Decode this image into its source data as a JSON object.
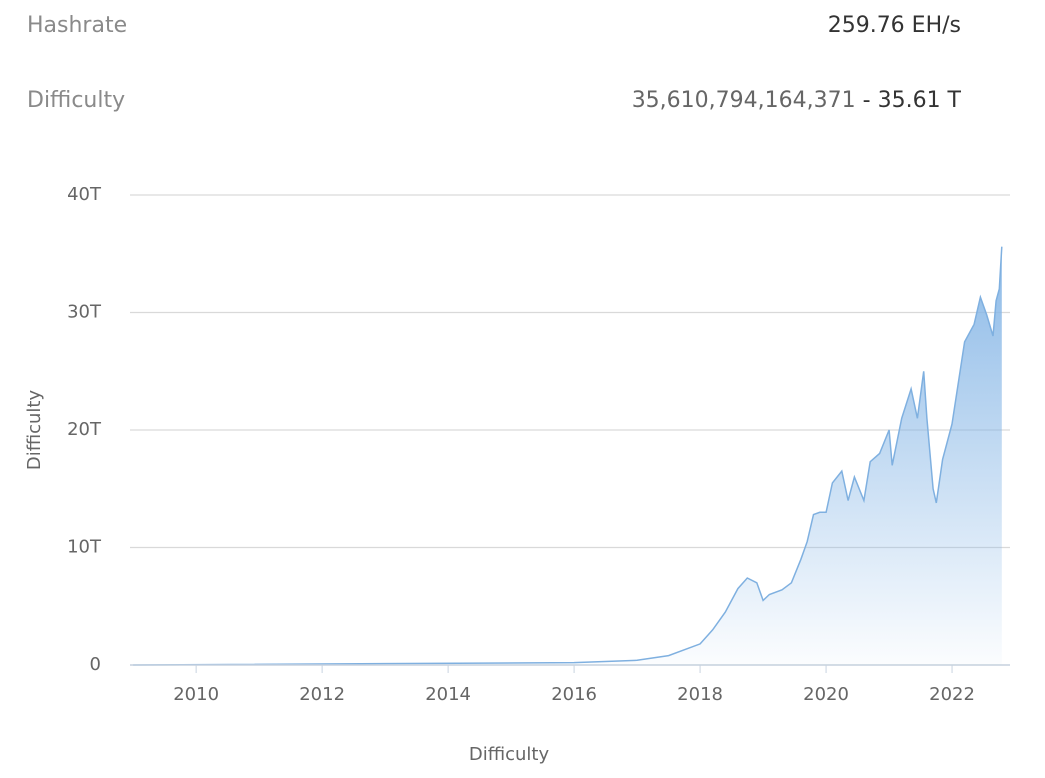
{
  "header": {
    "hashrate_label": "Hashrate",
    "hashrate_value": "259.76 EH/s",
    "difficulty_label": "Difficulty",
    "difficulty_raw": "35,610,794,164,371",
    "separator": "-",
    "difficulty_short": "35.61 T"
  },
  "chart_data": {
    "type": "area",
    "y_label": "Difficulty",
    "x_label": "Difficulty",
    "color": "#7fb0e0",
    "x": [
      2009.0,
      2016.0,
      2017.0,
      2017.5,
      2018.0,
      2018.2,
      2018.4,
      2018.6,
      2018.75,
      2018.9,
      2019.0,
      2019.1,
      2019.3,
      2019.45,
      2019.6,
      2019.7,
      2019.8,
      2019.9,
      2020.0,
      2020.1,
      2020.25,
      2020.35,
      2020.45,
      2020.6,
      2020.7,
      2020.85,
      2021.0,
      2021.05,
      2021.2,
      2021.35,
      2021.45,
      2021.55,
      2021.6,
      2021.7,
      2021.75,
      2021.85,
      2022.0,
      2022.1,
      2022.2,
      2022.35,
      2022.45,
      2022.55,
      2022.65,
      2022.7,
      2022.75,
      2022.79
    ],
    "values": [
      0,
      0.2,
      0.4,
      0.8,
      1.8,
      3,
      4.5,
      6.5,
      7.4,
      7.0,
      5.5,
      6.0,
      6.4,
      7.0,
      9.0,
      10.5,
      12.8,
      13.0,
      13.0,
      15.5,
      16.5,
      14.0,
      16.0,
      14.0,
      17.3,
      18.0,
      20.0,
      17.0,
      21.0,
      23.5,
      21.0,
      25.0,
      21.0,
      15.0,
      13.8,
      17.5,
      20.5,
      24.0,
      27.5,
      29.0,
      31.3,
      29.8,
      28.0,
      31.0,
      32.0,
      35.6
    ],
    "xlim": [
      2008.95,
      2022.92
    ],
    "xticks": [
      2010,
      2012,
      2014,
      2016,
      2018,
      2020,
      2022
    ],
    "ylim": [
      0,
      40
    ],
    "yticks": [
      {
        "value": 0,
        "label": "0"
      },
      {
        "value": 10,
        "label": "10T"
      },
      {
        "value": 20,
        "label": "20T"
      },
      {
        "value": 30,
        "label": "30T"
      },
      {
        "value": 40,
        "label": "40T"
      }
    ],
    "grid": true
  }
}
